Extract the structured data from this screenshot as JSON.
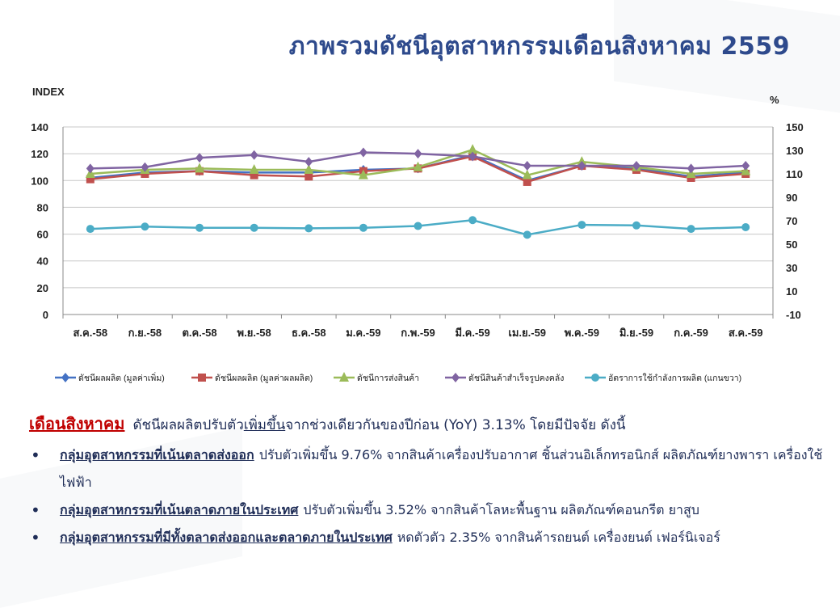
{
  "title": "ภาพรวมดัชนีอุตสาหกรรมเดือนสิงหาคม  2559",
  "chart_data": {
    "type": "line",
    "left_axis_label": "INDEX",
    "right_axis_label": "%",
    "categories": [
      "ส.ค.-58",
      "ก.ย.-58",
      "ต.ค.-58",
      "พ.ย.-58",
      "ธ.ค.-58",
      "ม.ค.-59",
      "ก.พ.-59",
      "มี.ค.-59",
      "เม.ย.-59",
      "พ.ค.-59",
      "มิ.ย.-59",
      "ก.ค.-59",
      "ส.ค.-59"
    ],
    "left_ylim": [
      0,
      140
    ],
    "left_ticks": [
      "0",
      "20",
      "40",
      "60",
      "80",
      "100",
      "120",
      "140"
    ],
    "right_ylim": [
      -10,
      150
    ],
    "right_ticks": [
      "-10",
      "10",
      "30",
      "50",
      "70",
      "90",
      "110",
      "130",
      "150"
    ],
    "grid": true,
    "legend_position": "bottom",
    "series": [
      {
        "name": "ดัชนีผลผลิต (มูลค่าเพิ่ม)",
        "color": "#4472c4",
        "marker": "diamond",
        "axis": "left",
        "values": [
          102,
          106,
          107,
          106,
          106,
          108,
          109,
          119,
          100,
          111,
          109,
          103,
          106
        ]
      },
      {
        "name": "ดัชนีผลผลิต (มูลค่าผลผลิต)",
        "color": "#c0504d",
        "marker": "square",
        "axis": "left",
        "values": [
          101,
          105,
          107,
          104,
          103,
          107,
          109,
          118,
          99,
          111,
          108,
          102,
          105
        ]
      },
      {
        "name": "ดัชนีการส่งสินค้า",
        "color": "#9bbb59",
        "marker": "triangle",
        "axis": "left",
        "values": [
          105,
          108,
          109,
          108,
          108,
          104,
          110,
          123,
          104,
          114,
          110,
          105,
          107
        ]
      },
      {
        "name": "ดัชนีสินค้าสำเร็จรูปคงคลัง",
        "color": "#8064a2",
        "marker": "diamond",
        "axis": "left",
        "values": [
          109,
          110,
          117,
          119,
          114,
          121,
          120,
          118,
          111,
          111,
          111,
          109,
          111
        ]
      },
      {
        "name": "อัตราการใช้กำลังการผลิต (แกนขวา)",
        "color": "#4bacc6",
        "marker": "circle",
        "axis": "right",
        "values": [
          63,
          65,
          64,
          64,
          63.5,
          64,
          65.5,
          70.5,
          58,
          66.5,
          66,
          63,
          64.5
        ]
      }
    ]
  },
  "notes": {
    "month_label": "เดือนสิงหาคม",
    "lead_part1": "ดัชนีผลผลิตปรับตัว",
    "lead_keyword": "เพิ่มขึ้น",
    "lead_part2": "จากช่วงเดียวกันของปีก่อน  (YoY)  3.13%  โดยมีปัจจัย  ดังนี้",
    "bullets": [
      {
        "group": "กลุ่มอุตสาหกรรมที่เน้นตลาดส่งออก",
        "text": "ปรับตัวเพิ่มขึ้น 9.76%  จากสินค้าเครื่องปรับอากาศ ชิ้นส่วนอิเล็กทรอนิกส์  ผลิตภัณฑ์ยางพารา เครื่องใช้ไฟฟ้า"
      },
      {
        "group": "กลุ่มอุตสาหกรรมที่เน้นตลาดภายในประเทศ",
        "text": "ปรับตัวเพิ่มขึ้น  3.52%  จากสินค้าโลหะพื้นฐาน  ผลิตภัณฑ์คอนกรีต  ยาสูบ"
      },
      {
        "group": "กลุ่มอุตสาหกรรมที่มีทั้งตลาดส่งออกและตลาดภายในประเทศ",
        "text": "หดตัวตัว  2.35%  จากสินค้ารถยนต์  เครื่องยนต์  เฟอร์นิเจอร์"
      }
    ]
  }
}
